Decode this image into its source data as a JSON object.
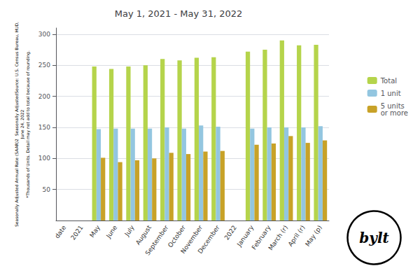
{
  "chart_data": {
    "type": "bar",
    "title": "May 1, 2021 - May 31, 2022",
    "ylabel": "Seasonally Adjusted Annual Rate (SAAR)2  Seasonally AdjustedSource: U.S. Census Bureau, HUD,\nJune 24, 2022\n*Thousands of Units. Detail may not add to total because of rounding.",
    "annotations": [
      "bylt"
    ],
    "categories": [
      "date",
      "2021",
      "May",
      "June",
      "July",
      "August",
      "September",
      "October",
      "November",
      "December",
      "2022",
      "January",
      "February",
      "March (r)",
      "April (r)",
      "May (p)"
    ],
    "series": [
      {
        "name": "Total",
        "color": "#b5d44b",
        "values": [
          null,
          null,
          248,
          244,
          248,
          250,
          260,
          258,
          262,
          263,
          null,
          272,
          275,
          290,
          282,
          283
        ]
      },
      {
        "name": "1 unit",
        "color": "#93c6e0",
        "values": [
          null,
          null,
          147,
          148,
          148,
          148,
          150,
          148,
          153,
          151,
          null,
          148,
          150,
          150,
          150,
          152
        ]
      },
      {
        "name": "5 units\nor more",
        "color": "#c8a228",
        "values": [
          null,
          null,
          101,
          94,
          97,
          100,
          109,
          107,
          111,
          112,
          null,
          122,
          124,
          136,
          125,
          129
        ]
      }
    ],
    "ylim": [
      0,
      310
    ],
    "yticks": [
      50,
      100,
      150,
      200,
      250,
      300
    ],
    "grid": true,
    "legend": "right"
  }
}
